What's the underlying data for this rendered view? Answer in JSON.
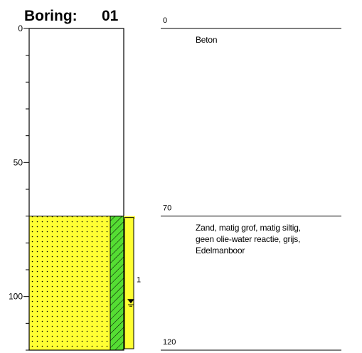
{
  "header": {
    "label": "Boring:",
    "number": "01"
  },
  "axis": {
    "min": 0,
    "max": 120,
    "ticks": [
      0,
      50,
      100
    ]
  },
  "layers": [
    {
      "top": 0,
      "bottom": 70,
      "top_label": "0",
      "description": [
        "Beton"
      ],
      "fill": "#ffffff",
      "pattern": "none"
    },
    {
      "top": 70,
      "bottom": 120,
      "top_label": "70",
      "description": [
        "Zand, matig grof, matig siltig,",
        "geen olie-water reactie, grijs,",
        "Edelmanboor"
      ],
      "fill": "#ffff33",
      "pattern": "dots"
    }
  ],
  "end_label": "120",
  "sample": {
    "top": 70,
    "bottom": 120,
    "number": "1",
    "color": "#ffff33"
  },
  "water_level": {
    "depth": 102
  },
  "strip": {
    "top": 70,
    "bottom": 120,
    "color": "#55dd33"
  }
}
